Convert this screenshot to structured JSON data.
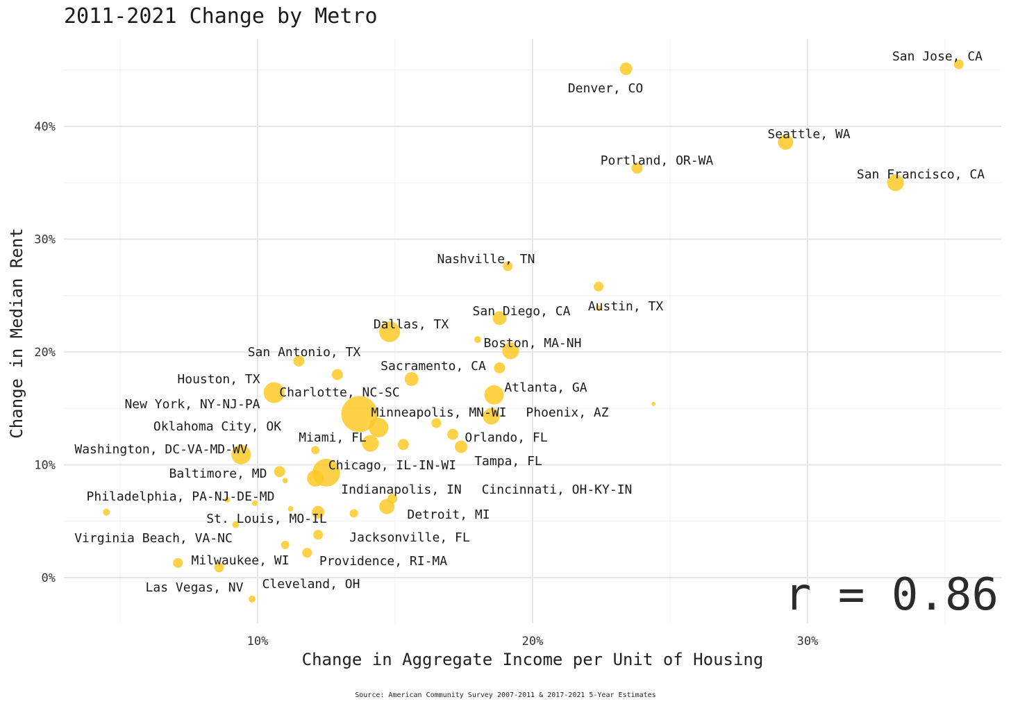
{
  "chart_data": {
    "type": "scatter",
    "title": "2011-2021 Change by Metro",
    "xlabel": "Change in Aggregate Income per Unit of Housing",
    "ylabel": "Change in Median Rent",
    "xlim": [
      3,
      37
    ],
    "ylim": [
      -4,
      48
    ],
    "x_ticks": [
      10,
      20,
      30
    ],
    "x_tick_labels": [
      "10%",
      "20%",
      "30%"
    ],
    "y_ticks": [
      0,
      10,
      20,
      30,
      40
    ],
    "y_tick_labels": [
      "0%",
      "10%",
      "20%",
      "30%",
      "40%"
    ],
    "marker_color": "#fdc928",
    "annotation": "r = 0.86",
    "source": "Source: American Community Survey 2007-2011 & 2017-2021 5-Year Estimates",
    "labeled_points": [
      {
        "name": "San Jose, CA",
        "x": 35.5,
        "y": 45.5,
        "size": 7
      },
      {
        "name": "Denver, CO",
        "x": 23.4,
        "y": 45.1,
        "size": 9
      },
      {
        "name": "Seattle, WA",
        "x": 29.2,
        "y": 38.6,
        "size": 11
      },
      {
        "name": "Portland, OR-WA",
        "x": 23.8,
        "y": 36.3,
        "size": 8
      },
      {
        "name": "San Francisco, CA",
        "x": 33.2,
        "y": 35.0,
        "size": 12
      },
      {
        "name": "Nashville, TN",
        "x": 19.1,
        "y": 27.6,
        "size": 7
      },
      {
        "name": "Austin, TX",
        "x": 22.4,
        "y": 23.9,
        "size": 4
      },
      {
        "name": "San Diego, CA",
        "x": 18.8,
        "y": 23.0,
        "size": 10
      },
      {
        "name": "Dallas, TX",
        "x": 14.8,
        "y": 21.8,
        "size": 15
      },
      {
        "name": "Boston, MA-NH",
        "x": 19.2,
        "y": 20.1,
        "size": 12
      },
      {
        "name": "San Antonio, TX",
        "x": 11.5,
        "y": 19.2,
        "size": 8
      },
      {
        "name": "Sacramento, CA",
        "x": 15.6,
        "y": 17.6,
        "size": 10
      },
      {
        "name": "Houston, TX",
        "x": 12.9,
        "y": 18.0,
        "size": 8
      },
      {
        "name": "Charlotte, NC-SC",
        "x": 10.6,
        "y": 16.4,
        "size": 15
      },
      {
        "name": "Atlanta, GA",
        "x": 18.6,
        "y": 16.2,
        "size": 14
      },
      {
        "name": "New York, NY-NJ-PA",
        "x": 13.7,
        "y": 14.5,
        "size": 26
      },
      {
        "name": "Minneapolis, MN-WI",
        "x": 18.5,
        "y": 14.3,
        "size": 12
      },
      {
        "name": "Phoenix, AZ",
        "x": 14.4,
        "y": 13.3,
        "size": 14
      },
      {
        "name": "Oklahoma City, OK",
        "x": 16.5,
        "y": 13.7,
        "size": 7
      },
      {
        "name": "Miami, FL",
        "x": 14.1,
        "y": 11.9,
        "size": 12
      },
      {
        "name": "Orlando, FL",
        "x": 17.1,
        "y": 12.7,
        "size": 8
      },
      {
        "name": "Washington, DC-VA-MD-WV",
        "x": 9.4,
        "y": 10.9,
        "size": 14
      },
      {
        "name": "Tampa, FL",
        "x": 17.4,
        "y": 11.6,
        "size": 9
      },
      {
        "name": "Chicago, IL-IN-WI",
        "x": 12.5,
        "y": 9.3,
        "size": 20
      },
      {
        "name": "Baltimore, MD",
        "x": 10.8,
        "y": 9.4,
        "size": 8
      },
      {
        "name": "Indianapolis, IN",
        "x": 12.1,
        "y": 8.8,
        "size": 12
      },
      {
        "name": "Cincinnati, OH-KY-IN",
        "x": 14.9,
        "y": 7.0,
        "size": 7
      },
      {
        "name": "Philadelphia, PA-NJ-DE-MD",
        "x": 8.9,
        "y": 6.9,
        "size": 4
      },
      {
        "name": "Detroit, MI",
        "x": 14.7,
        "y": 6.3,
        "size": 11
      },
      {
        "name": "St. Louis, MO-IL",
        "x": 12.2,
        "y": 5.8,
        "size": 9
      },
      {
        "name": "Virginia Beach, VA-NC",
        "x": 4.5,
        "y": 5.8,
        "size": 5
      },
      {
        "name": "Jacksonville, FL",
        "x": 13.5,
        "y": 5.7,
        "size": 6
      },
      {
        "name": "Milwaukee, WI",
        "x": 12.2,
        "y": 3.8,
        "size": 7
      },
      {
        "name": "Providence, RI-MA",
        "x": 11.8,
        "y": 2.2,
        "size": 7
      },
      {
        "name": "Las Vegas, NV",
        "x": 8.6,
        "y": 0.9,
        "size": 7
      },
      {
        "name": "Cleveland, OH",
        "x": 9.8,
        "y": -1.9,
        "size": 5
      }
    ],
    "unlabeled_points": [
      {
        "x": 22.4,
        "y": 25.8,
        "size": 7
      },
      {
        "x": 18.0,
        "y": 21.1,
        "size": 5
      },
      {
        "x": 18.8,
        "y": 18.6,
        "size": 8
      },
      {
        "x": 24.4,
        "y": 15.4,
        "size": 3
      },
      {
        "x": 15.3,
        "y": 11.8,
        "size": 8
      },
      {
        "x": 12.1,
        "y": 11.3,
        "size": 6
      },
      {
        "x": 11.0,
        "y": 8.6,
        "size": 4
      },
      {
        "x": 9.9,
        "y": 6.6,
        "size": 4
      },
      {
        "x": 11.2,
        "y": 6.1,
        "size": 4
      },
      {
        "x": 9.2,
        "y": 4.7,
        "size": 5
      },
      {
        "x": 11.0,
        "y": 2.9,
        "size": 6
      },
      {
        "x": 7.1,
        "y": 1.3,
        "size": 7
      }
    ]
  }
}
